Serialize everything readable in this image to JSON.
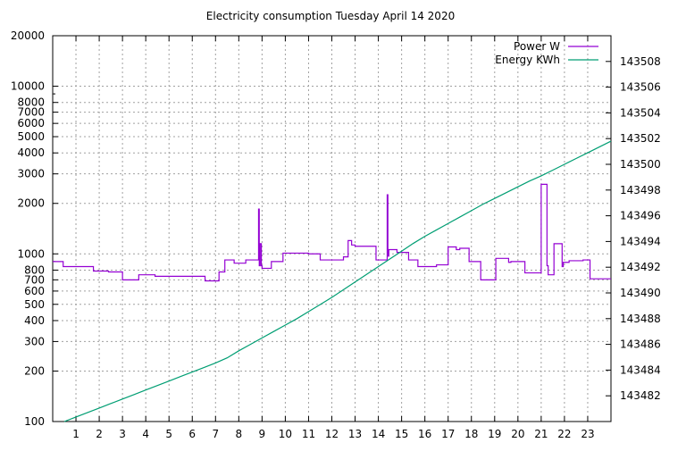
{
  "chart_data": {
    "type": "line",
    "title": "Electricity consumption Tuesday April 14 2020",
    "xlabel": "",
    "ylabel": "",
    "y2label": "",
    "grid": true,
    "legend_position": "top-right",
    "x_range": [
      0,
      24
    ],
    "x_ticks": [
      1,
      2,
      3,
      4,
      5,
      6,
      7,
      8,
      9,
      10,
      11,
      12,
      13,
      14,
      15,
      16,
      17,
      18,
      19,
      20,
      21,
      22,
      23
    ],
    "y_scale": "log",
    "y_range": [
      100,
      20000
    ],
    "y_ticks": [
      100,
      200,
      300,
      400,
      500,
      600,
      700,
      800,
      1000,
      2000,
      3000,
      4000,
      5000,
      6000,
      7000,
      8000,
      10000,
      20000
    ],
    "y2_scale": "linear",
    "y2_range": [
      143480.0,
      143510.0
    ],
    "y2_ticks": [
      143482,
      143484,
      143486,
      143488,
      143490,
      143492,
      143494,
      143496,
      143498,
      143500,
      143502,
      143504,
      143506,
      143508
    ],
    "series": [
      {
        "name": "Power W",
        "axis": "y",
        "color": "#9400d3",
        "step": true,
        "x": [
          0,
          0.45,
          0.45,
          1.75,
          1.75,
          2.4,
          2.4,
          3.0,
          3.0,
          3.7,
          3.7,
          4.4,
          4.4,
          6.55,
          6.55,
          7.15,
          7.15,
          7.4,
          7.4,
          7.8,
          7.8,
          8.3,
          8.3,
          8.85,
          8.85,
          8.88,
          8.88,
          8.92,
          8.92,
          8.97,
          8.97,
          9.0,
          9.0,
          9.4,
          9.4,
          9.9,
          9.9,
          11.0,
          11.0,
          11.5,
          11.5,
          12.5,
          12.5,
          12.7,
          12.7,
          12.85,
          12.85,
          13.0,
          13.0,
          13.9,
          13.9,
          14.38,
          14.38,
          14.41,
          14.41,
          14.45,
          14.45,
          14.8,
          14.8,
          15.3,
          15.3,
          15.7,
          15.7,
          16.5,
          16.5,
          17.0,
          17.0,
          17.35,
          17.35,
          17.5,
          17.5,
          17.9,
          17.9,
          18.4,
          18.4,
          19.05,
          19.05,
          19.6,
          19.6,
          19.7,
          19.7,
          20.3,
          20.3,
          21.0,
          21.0,
          21.25,
          21.25,
          21.3,
          21.3,
          21.55,
          21.55,
          21.9,
          21.9,
          21.95,
          21.95,
          22.2,
          22.2,
          22.8,
          22.8,
          23.1,
          23.1,
          23.2,
          23.2,
          24.0
        ],
        "y": [
          900,
          900,
          840,
          840,
          790,
          790,
          780,
          780,
          700,
          700,
          750,
          750,
          735,
          735,
          690,
          690,
          780,
          780,
          920,
          920,
          880,
          880,
          920,
          920,
          1850,
          1850,
          850,
          850,
          1150,
          1150,
          850,
          850,
          820,
          820,
          900,
          900,
          1010,
          1010,
          1000,
          1000,
          920,
          920,
          960,
          960,
          1200,
          1200,
          1130,
          1130,
          1110,
          1110,
          920,
          920,
          2250,
          2250,
          970,
          970,
          1060,
          1060,
          1020,
          1020,
          920,
          920,
          840,
          840,
          860,
          860,
          1100,
          1100,
          1060,
          1060,
          1080,
          1080,
          900,
          900,
          700,
          700,
          940,
          940,
          890,
          890,
          900,
          900,
          770,
          770,
          2600,
          2600,
          850,
          850,
          750,
          750,
          1150,
          1150,
          840,
          840,
          890,
          890,
          910,
          910,
          920,
          920,
          710,
          710,
          710,
          710
        ]
      },
      {
        "name": "Energy KWh",
        "axis": "y2",
        "color": "#009e73",
        "step": false,
        "x": [
          0.5,
          1.0,
          1.5,
          2.0,
          2.5,
          3.0,
          3.5,
          4.0,
          4.5,
          5.0,
          5.5,
          6.0,
          6.5,
          7.0,
          7.5,
          8.0,
          8.5,
          9.0,
          9.5,
          10.0,
          10.5,
          11.0,
          11.5,
          12.0,
          12.5,
          13.0,
          13.5,
          14.0,
          14.5,
          15.0,
          15.5,
          16.0,
          16.5,
          17.0,
          17.5,
          18.0,
          18.5,
          19.0,
          19.5,
          20.0,
          20.5,
          21.0,
          21.5,
          22.0,
          22.5,
          23.0,
          23.5,
          24.0
        ],
        "y": [
          143480.0,
          143480.35,
          143480.7,
          143481.05,
          143481.4,
          143481.75,
          143482.1,
          143482.45,
          143482.8,
          143483.15,
          143483.5,
          143483.85,
          143484.2,
          143484.55,
          143484.95,
          143485.5,
          143486.0,
          143486.5,
          143487.0,
          143487.5,
          143488.0,
          143488.55,
          143489.1,
          143489.65,
          143490.25,
          143490.85,
          143491.45,
          143492.05,
          143492.65,
          143493.25,
          143493.85,
          143494.4,
          143494.9,
          143495.4,
          143495.9,
          143496.4,
          143496.9,
          143497.35,
          143497.8,
          143498.25,
          143498.7,
          143499.1,
          143499.55,
          143500.0,
          143500.45,
          143500.9,
          143501.35,
          143501.8
        ]
      }
    ]
  }
}
